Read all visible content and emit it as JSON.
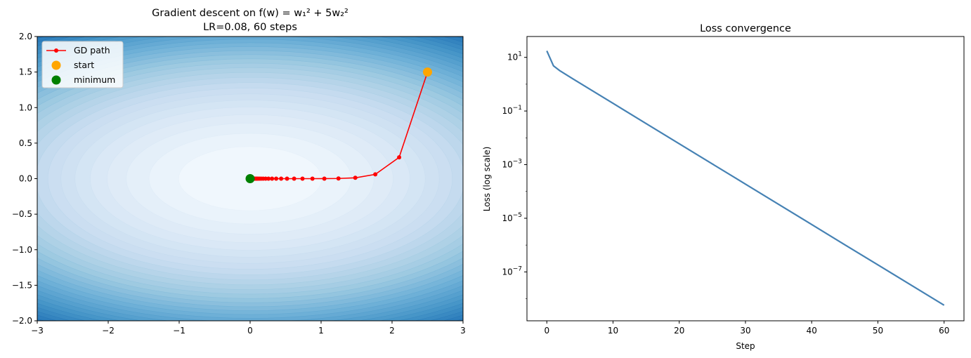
{
  "chart_data": [
    {
      "type": "contour",
      "title": "Gradient descent on f(w) = w₁² + 5w₂²",
      "subtitle": "LR=0.08, 60 steps",
      "xlabel": "",
      "ylabel": "",
      "xlim": [
        -3,
        3
      ],
      "ylim": [
        -2,
        2
      ],
      "xticks": [
        -3,
        -2,
        -1,
        0,
        1,
        2,
        3
      ],
      "xtick_labels": [
        "−3",
        "−2",
        "−1",
        "0",
        "1",
        "2",
        "3"
      ],
      "yticks": [
        2.0,
        1.5,
        1.0,
        0.5,
        0.0,
        -0.5,
        -1.0,
        -1.5,
        -2.0
      ],
      "ytick_labels": [
        "2.0",
        "1.5",
        "1.0",
        "0.5",
        "0.0",
        "−0.5",
        "−1.0",
        "−1.5",
        "−2.0"
      ],
      "grid": false,
      "colormap": "Blues",
      "function": "w1^2 + 5*w2^2",
      "learning_rate": 0.08,
      "steps": 60,
      "legend": {
        "position": "upper left",
        "entries": [
          {
            "label": "GD path",
            "color": "#ff0000",
            "marker": "line-dot"
          },
          {
            "label": "start",
            "color": "#ffa500",
            "marker": "circle"
          },
          {
            "label": "minimum",
            "color": "#008000",
            "marker": "circle"
          }
        ]
      },
      "series": [
        {
          "name": "GD path",
          "color": "#ff0000",
          "points": [
            [
              2.5,
              1.5
            ],
            [
              2.1,
              0.3
            ],
            [
              1.764,
              0.06
            ],
            [
              1.482,
              0.012
            ],
            [
              1.245,
              0.0024
            ],
            [
              1.046,
              0.00048
            ],
            [
              0.878,
              0.0001
            ],
            [
              0.738,
              2e-05
            ],
            [
              0.62,
              0.0
            ],
            [
              0.52,
              0.0
            ],
            [
              0.437,
              0.0
            ],
            [
              0.367,
              0.0
            ],
            [
              0.309,
              0.0
            ],
            [
              0.259,
              0.0
            ],
            [
              0.218,
              0.0
            ],
            [
              0.183,
              0.0
            ],
            [
              0.154,
              0.0
            ],
            [
              0.129,
              0.0
            ],
            [
              0.108,
              0.0
            ],
            [
              0.091,
              0.0
            ],
            [
              0.077,
              0.0
            ],
            [
              0.064,
              0.0
            ],
            [
              0.054,
              0.0
            ],
            [
              0.045,
              0.0
            ],
            [
              0.038,
              0.0
            ],
            [
              0.032,
              0.0
            ],
            [
              0.027,
              0.0
            ],
            [
              0.023,
              0.0
            ],
            [
              0.019,
              0.0
            ],
            [
              0.016,
              0.0
            ],
            [
              0.013,
              0.0
            ],
            [
              0.011,
              0.0
            ],
            [
              0.0094,
              0.0
            ],
            [
              0.0079,
              0.0
            ],
            [
              0.0066,
              0.0
            ],
            [
              0.0056,
              0.0
            ],
            [
              0.0047,
              0.0
            ],
            [
              0.0039,
              0.0
            ],
            [
              0.0033,
              0.0
            ],
            [
              0.0028,
              0.0
            ],
            [
              0.0023,
              0.0
            ],
            [
              0.002,
              0.0
            ],
            [
              0.0017,
              0.0
            ],
            [
              0.0014,
              0.0
            ],
            [
              0.0012,
              0.0
            ],
            [
              0.001,
              0.0
            ],
            [
              0.0008,
              0.0
            ],
            [
              0.0007,
              0.0
            ],
            [
              0.0006,
              0.0
            ],
            [
              0.0005,
              0.0
            ],
            [
              0.0004,
              0.0
            ],
            [
              0.0003,
              0.0
            ],
            [
              0.0003,
              0.0
            ],
            [
              0.0002,
              0.0
            ],
            [
              0.0002,
              0.0
            ],
            [
              0.0002,
              0.0
            ],
            [
              0.0001,
              0.0
            ],
            [
              0.0001,
              0.0
            ],
            [
              0.0001,
              0.0
            ],
            [
              0.0001,
              0.0
            ],
            [
              7e-05,
              0.0
            ]
          ]
        },
        {
          "name": "start",
          "color": "#ffa500",
          "points": [
            [
              2.5,
              1.5
            ]
          ]
        },
        {
          "name": "minimum",
          "color": "#008000",
          "points": [
            [
              0.0,
              0.0
            ]
          ]
        }
      ]
    },
    {
      "type": "line",
      "title": "Loss convergence",
      "xlabel": "Step",
      "ylabel": "Loss (log scale)",
      "yscale": "log",
      "xlim": [
        -3,
        63
      ],
      "ylim": [
        1.5e-09,
        60
      ],
      "xticks": [
        0,
        10,
        20,
        30,
        40,
        50,
        60
      ],
      "yticks": [
        {
          "base": "10",
          "exp": "1",
          "value": 10
        },
        {
          "base": "10",
          "exp": "−1",
          "value": 0.1
        },
        {
          "base": "10",
          "exp": "−3",
          "value": 0.001
        },
        {
          "base": "10",
          "exp": "−5",
          "value": 1e-05
        },
        {
          "base": "10",
          "exp": "−7",
          "value": 1e-07
        }
      ],
      "grid": false,
      "series": [
        {
          "name": "loss",
          "color": "#4682b4",
          "x": [
            0,
            1,
            2,
            3,
            4,
            5,
            10,
            15,
            20,
            25,
            30,
            35,
            40,
            45,
            50,
            55,
            60
          ],
          "values": [
            17.5,
            4.86,
            3.13,
            2.197,
            1.551,
            1.094,
            0.193,
            0.034,
            0.00601,
            0.00106,
            0.000188,
            3.32e-05,
            5.86e-06,
            1.03e-06,
            1.83e-07,
            3.23e-08,
            5.7e-09
          ]
        }
      ]
    }
  ]
}
